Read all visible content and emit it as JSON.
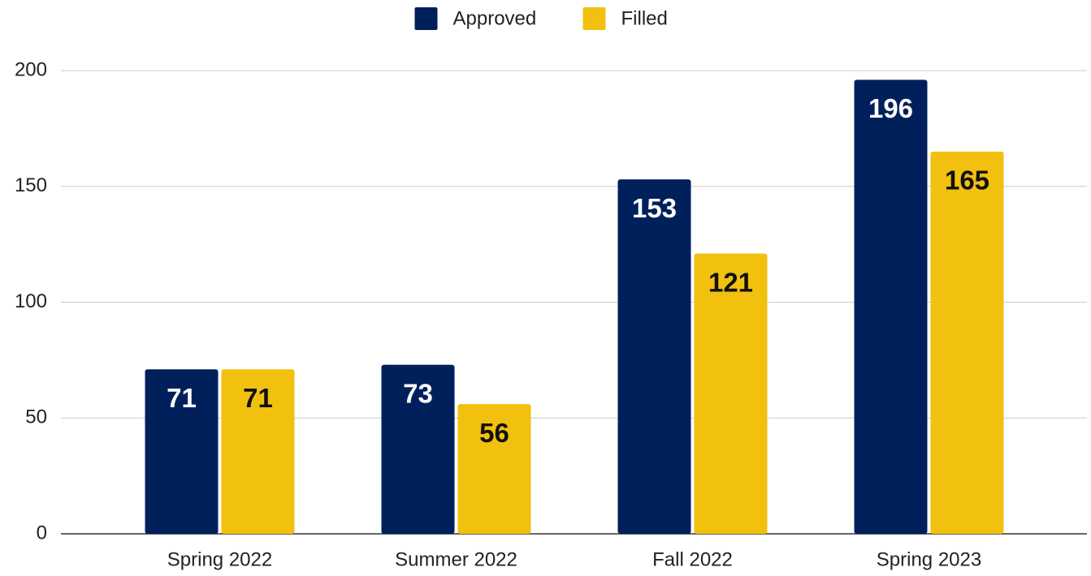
{
  "chart_data": {
    "type": "bar",
    "categories": [
      "Spring 2022",
      "Summer 2022",
      "Fall 2022",
      "Spring 2023"
    ],
    "series": [
      {
        "name": "Approved",
        "color": "#00205b",
        "values": [
          71,
          73,
          153,
          196
        ]
      },
      {
        "name": "Filled",
        "color": "#f2c00f",
        "values": [
          71,
          56,
          121,
          165
        ]
      }
    ],
    "ylim": [
      0,
      200
    ],
    "yticks": [
      0,
      50,
      100,
      150,
      200
    ],
    "grid": true,
    "legend": "top"
  }
}
